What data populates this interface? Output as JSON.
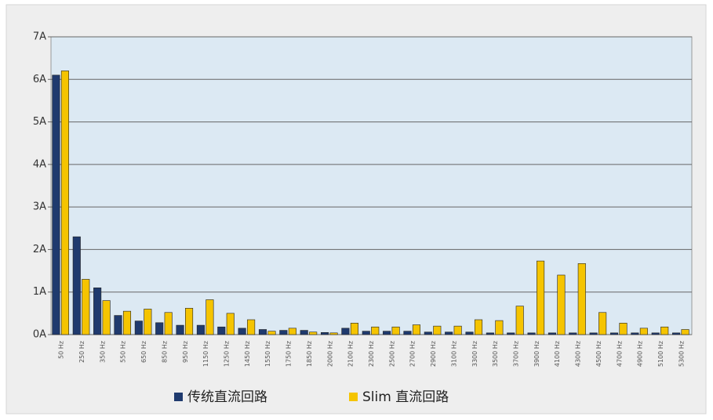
{
  "chart_data": {
    "type": "bar",
    "categories": [
      "50 Hz",
      "250 Hz",
      "350 Hz",
      "550 Hz",
      "650 Hz",
      "850 Hz",
      "950 Hz",
      "1150 Hz",
      "1250 Hz",
      "1450 Hz",
      "1550 Hz",
      "1750 Hz",
      "1850 Hz",
      "2000 Hz",
      "2100 Hz",
      "2300 Hz",
      "2500 Hz",
      "2700 Hz",
      "2900 Hz",
      "3100 Hz",
      "3300 Hz",
      "3500 Hz",
      "3700 Hz",
      "3900 Hz",
      "4100 Hz",
      "4300 Hz",
      "4500 Hz",
      "4700 Hz",
      "4900 Hz",
      "5100 Hz",
      "5300 Hz"
    ],
    "series": [
      {
        "name": "传统直流回路",
        "color": "#1f3a6e",
        "values": [
          6.1,
          2.3,
          1.1,
          0.45,
          0.32,
          0.28,
          0.22,
          0.22,
          0.18,
          0.15,
          0.12,
          0.1,
          0.1,
          0.05,
          0.15,
          0.08,
          0.08,
          0.08,
          0.06,
          0.06,
          0.06,
          0.04,
          0.04,
          0.04,
          0.04,
          0.04,
          0.04,
          0.04,
          0.04,
          0.04,
          0.04
        ]
      },
      {
        "name": "Slim 直流回路",
        "color": "#f5c400",
        "values": [
          6.2,
          1.3,
          0.8,
          0.55,
          0.6,
          0.52,
          0.62,
          0.82,
          0.5,
          0.35,
          0.08,
          0.15,
          0.06,
          0.04,
          0.27,
          0.18,
          0.18,
          0.23,
          0.2,
          0.2,
          0.35,
          0.33,
          0.67,
          1.73,
          1.4,
          1.67,
          0.52,
          0.27,
          0.15,
          0.18,
          0.12
        ]
      }
    ],
    "ylim": [
      0,
      7
    ],
    "yticks": [
      {
        "value": 0,
        "label": "0A"
      },
      {
        "value": 1,
        "label": "1A"
      },
      {
        "value": 2,
        "label": "2A"
      },
      {
        "value": 3,
        "label": "3A"
      },
      {
        "value": 4,
        "label": "4A"
      },
      {
        "value": 5,
        "label": "5A"
      },
      {
        "value": 6,
        "label": "6A"
      },
      {
        "value": 7,
        "label": "7A"
      }
    ],
    "grid": true
  }
}
